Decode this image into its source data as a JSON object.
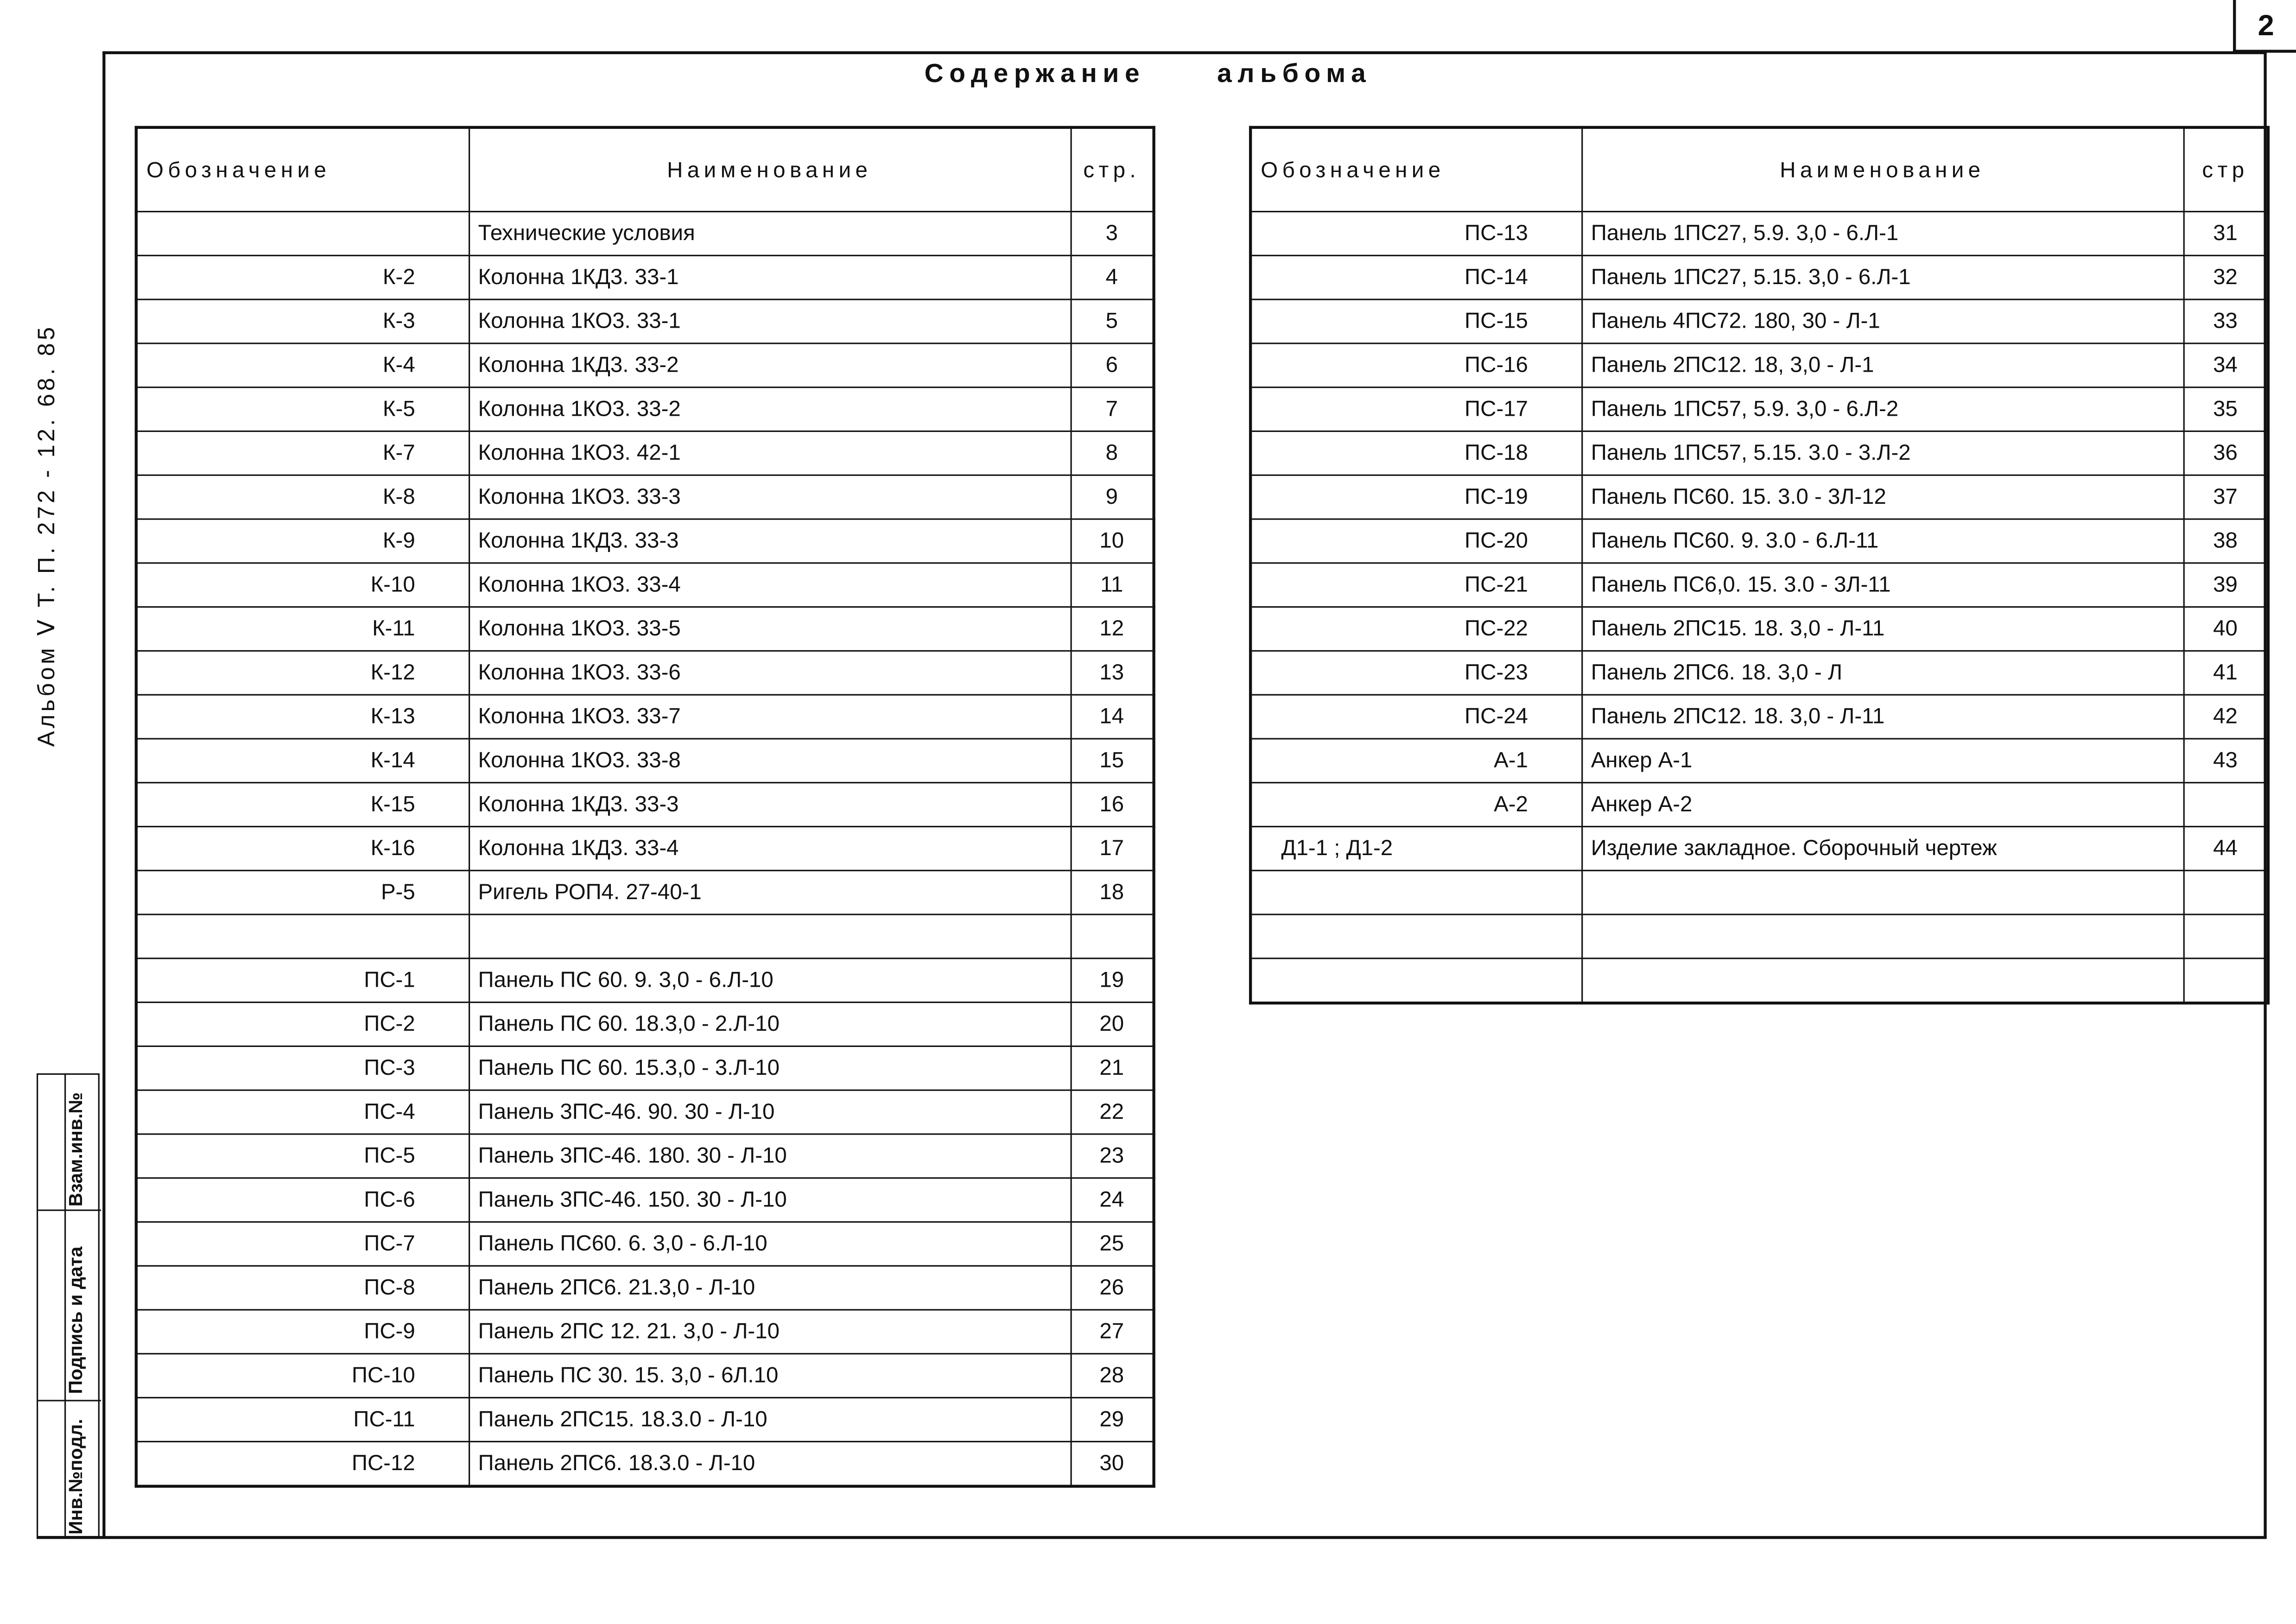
{
  "page_number": "2",
  "title": "Содержание альбома",
  "side_label": "Альбом Ⅴ  Т. П. 272 - 12. 68. 85",
  "stamp": {
    "inv_podl": "Инв.№подл.",
    "podpis_data": "Подпись и дата",
    "vzam_inv": "Взам.инв.№"
  },
  "left_table": {
    "headers": {
      "code": "Обозначение",
      "name": "Наименование",
      "page": "стр."
    },
    "rows": [
      {
        "code": "",
        "name": "Технические условия",
        "page": "3"
      },
      {
        "code": "К-2",
        "name": "Колонна 1КД3. 33-1",
        "page": "4"
      },
      {
        "code": "К-3",
        "name": "Колонна 1КО3. 33-1",
        "page": "5"
      },
      {
        "code": "К-4",
        "name": "Колонна 1КД3. 33-2",
        "page": "6"
      },
      {
        "code": "К-5",
        "name": "Колонна 1КО3. 33-2",
        "page": "7"
      },
      {
        "code": "К-7",
        "name": "Колонна 1КО3. 42-1",
        "page": "8"
      },
      {
        "code": "К-8",
        "name": "Колонна 1КО3. 33-3",
        "page": "9"
      },
      {
        "code": "К-9",
        "name": "Колонна 1КД3. 33-3",
        "page": "10"
      },
      {
        "code": "К-10",
        "name": "Колонна 1КО3. 33-4",
        "page": "11"
      },
      {
        "code": "К-11",
        "name": "Колонна 1КО3. 33-5",
        "page": "12"
      },
      {
        "code": "К-12",
        "name": "Колонна 1КО3. 33-6",
        "page": "13"
      },
      {
        "code": "К-13",
        "name": "Колонна 1КО3. 33-7",
        "page": "14"
      },
      {
        "code": "К-14",
        "name": "Колонна 1КО3. 33-8",
        "page": "15"
      },
      {
        "code": "К-15",
        "name": "Колонна 1КД3. 33-3",
        "page": "16"
      },
      {
        "code": "К-16",
        "name": "Колонна 1КД3. 33-4",
        "page": "17"
      },
      {
        "code": "Р-5",
        "name": "Ригель РОП4. 27-40-1",
        "page": "18"
      },
      {
        "code": "",
        "name": "",
        "page": ""
      },
      {
        "code": "ПС-1",
        "name": "Панель ПС 60. 9. 3,0 - 6.Л-10",
        "page": "19"
      },
      {
        "code": "ПС-2",
        "name": "Панель ПС 60. 18.3,0 - 2.Л-10",
        "page": "20"
      },
      {
        "code": "ПС-3",
        "name": "Панель ПС 60. 15.3,0 - 3.Л-10",
        "page": "21"
      },
      {
        "code": "ПС-4",
        "name": "Панель 3ПС-46. 90. 30 - Л-10",
        "page": "22"
      },
      {
        "code": "ПС-5",
        "name": "Панель 3ПС-46. 180. 30 - Л-10",
        "page": "23"
      },
      {
        "code": "ПС-6",
        "name": "Панель 3ПС-46. 150. 30 - Л-10",
        "page": "24"
      },
      {
        "code": "ПС-7",
        "name": "Панель ПС60. 6. 3,0 - 6.Л-10",
        "page": "25"
      },
      {
        "code": "ПС-8",
        "name": "Панель 2ПС6. 21.3,0 - Л-10",
        "page": "26"
      },
      {
        "code": "ПС-9",
        "name": "Панель 2ПС 12. 21. 3,0 - Л-10",
        "page": "27"
      },
      {
        "code": "ПС-10",
        "name": "Панель ПС 30. 15. 3,0 - 6Л.10",
        "page": "28"
      },
      {
        "code": "ПС-11",
        "name": "Панель 2ПС15. 18.3.0 - Л-10",
        "page": "29"
      },
      {
        "code": "ПС-12",
        "name": "Панель 2ПС6. 18.3.0 - Л-10",
        "page": "30"
      }
    ]
  },
  "right_table": {
    "headers": {
      "code": "Обозначение",
      "name": "Наименование",
      "page": "стр"
    },
    "rows": [
      {
        "code": "ПС-13",
        "name": "Панель 1ПС27, 5.9. 3,0 - 6.Л-1",
        "page": "31"
      },
      {
        "code": "ПС-14",
        "name": "Панель 1ПС27, 5.15. 3,0 - 6.Л-1",
        "page": "32"
      },
      {
        "code": "ПС-15",
        "name": "Панель 4ПС72. 180, 30 - Л-1",
        "page": "33"
      },
      {
        "code": "ПС-16",
        "name": "Панель 2ПС12. 18, 3,0 - Л-1",
        "page": "34"
      },
      {
        "code": "ПС-17",
        "name": "Панель 1ПС57, 5.9. 3,0 - 6.Л-2",
        "page": "35"
      },
      {
        "code": "ПС-18",
        "name": "Панель 1ПС57, 5.15. 3.0 - 3.Л-2",
        "page": "36"
      },
      {
        "code": "ПС-19",
        "name": "Панель ПС60. 15. 3.0 - 3Л-12",
        "page": "37"
      },
      {
        "code": "ПС-20",
        "name": "Панель ПС60. 9. 3.0 - 6.Л-11",
        "page": "38"
      },
      {
        "code": "ПС-21",
        "name": "Панель ПС6,0. 15. 3.0 - 3Л-11",
        "page": "39"
      },
      {
        "code": "ПС-22",
        "name": "Панель 2ПС15. 18. 3,0 - Л-11",
        "page": "40"
      },
      {
        "code": "ПС-23",
        "name": "Панель 2ПС6. 18. 3,0 - Л",
        "page": "41"
      },
      {
        "code": "ПС-24",
        "name": "Панель 2ПС12. 18. 3,0 - Л-11",
        "page": "42"
      },
      {
        "code": "А-1",
        "name": "Анкер А-1",
        "page": "43"
      },
      {
        "code": "А-2",
        "name": "Анкер А-2",
        "page": ""
      },
      {
        "code": "Д1-1 ; Д1-2",
        "name": "Изделие закладное. Сборочный чертеж",
        "page": "44"
      },
      {
        "code": "",
        "name": "",
        "page": ""
      },
      {
        "code": "",
        "name": "",
        "page": ""
      },
      {
        "code": "",
        "name": "",
        "page": ""
      }
    ]
  }
}
